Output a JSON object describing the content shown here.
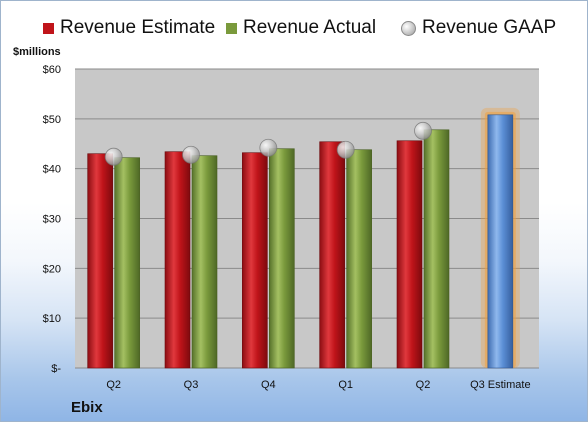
{
  "chart_data": {
    "type": "bar",
    "categories": [
      "Q2",
      "Q3",
      "Q4",
      "Q1",
      "Q2",
      "Q3 Estimate"
    ],
    "series": [
      {
        "name": "Revenue Estimate",
        "color": "#c0141a",
        "values": [
          43.0,
          43.4,
          43.2,
          45.4,
          45.6,
          null
        ]
      },
      {
        "name": "Revenue Actual",
        "color": "#7a9a3c",
        "values": [
          42.2,
          42.6,
          44.0,
          43.8,
          47.8,
          null
        ]
      },
      {
        "name": "Revenue GAAP",
        "color": "#b0b0b0",
        "marker": "sphere",
        "values": [
          42.4,
          42.8,
          44.2,
          43.8,
          47.6,
          null
        ]
      },
      {
        "name": "",
        "color": "#5b8fd6",
        "values": [
          null,
          null,
          null,
          null,
          null,
          50.8
        ]
      }
    ],
    "highlight": {
      "category": "Q3 Estimate",
      "glow_color": "#f0a040"
    },
    "ylim": [
      0,
      60
    ],
    "yticks": [
      0,
      10,
      20,
      30,
      40,
      50,
      60
    ],
    "ytick_labels": [
      "$-",
      "$10",
      "$20",
      "$30",
      "$40",
      "$50",
      "$60"
    ],
    "ylabel": "$millions",
    "grid": true,
    "plot_background": "#c8c8c8",
    "legend_position": "top"
  },
  "company": "Ebix"
}
